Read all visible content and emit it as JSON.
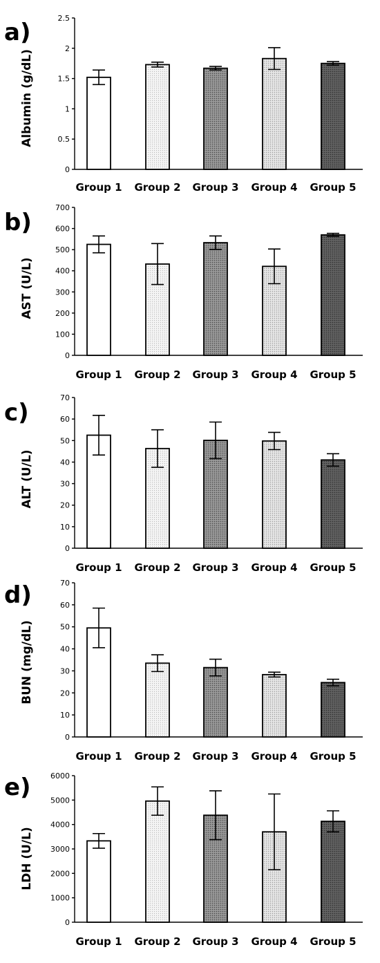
{
  "chart_data": [
    {
      "type": "bar",
      "panel_label": "a)",
      "ylabel": "Albumin (g/dL)",
      "ylim": [
        0,
        2.5
      ],
      "yticks": [
        0,
        0.5,
        1,
        1.5,
        2,
        2.5
      ],
      "ytick_labels": [
        "0",
        "0.5",
        "1",
        "1.5",
        "2",
        "2.5"
      ],
      "categories": [
        "Group 1",
        "Group 2",
        "Group 3",
        "Group 4",
        "Group 5"
      ],
      "values": [
        1.52,
        1.73,
        1.67,
        1.83,
        1.75
      ],
      "errors": [
        0.12,
        0.04,
        0.03,
        0.18,
        0.03
      ]
    },
    {
      "type": "bar",
      "panel_label": "b)",
      "ylabel": "AST (U/L)",
      "ylim": [
        0,
        700
      ],
      "yticks": [
        0,
        100,
        200,
        300,
        400,
        500,
        600,
        700
      ],
      "ytick_labels": [
        "0",
        "100",
        "200",
        "300",
        "400",
        "500",
        "600",
        "700"
      ],
      "categories": [
        "Group 1",
        "Group 2",
        "Group 3",
        "Group 4",
        "Group 5"
      ],
      "values": [
        525,
        432,
        533,
        421,
        570
      ],
      "errors": [
        40,
        97,
        32,
        82,
        7
      ]
    },
    {
      "type": "bar",
      "panel_label": "c)",
      "ylabel": "ALT (U/L)",
      "ylim": [
        0,
        70
      ],
      "yticks": [
        0,
        10,
        20,
        30,
        40,
        50,
        60,
        70
      ],
      "ytick_labels": [
        "0",
        "10",
        "20",
        "30",
        "40",
        "50",
        "60",
        "70"
      ],
      "categories": [
        "Group 1",
        "Group 2",
        "Group 3",
        "Group 4",
        "Group 5"
      ],
      "values": [
        52.5,
        46.3,
        50.1,
        49.8,
        41.0
      ],
      "errors": [
        9.2,
        8.7,
        8.5,
        4.0,
        2.9
      ]
    },
    {
      "type": "bar",
      "panel_label": "d)",
      "ylabel": "BUN (mg/dL)",
      "ylim": [
        0,
        70
      ],
      "yticks": [
        0,
        10,
        20,
        30,
        40,
        50,
        60,
        70
      ],
      "ytick_labels": [
        "0",
        "10",
        "20",
        "30",
        "40",
        "50",
        "60",
        "70"
      ],
      "categories": [
        "Group 1",
        "Group 2",
        "Group 3",
        "Group 4",
        "Group 5"
      ],
      "values": [
        49.5,
        33.5,
        31.5,
        28.3,
        24.7
      ],
      "errors": [
        9.0,
        3.8,
        3.8,
        1.1,
        1.5
      ]
    },
    {
      "type": "bar",
      "panel_label": "e)",
      "ylabel": "LDH (U/L)",
      "ylim": [
        0,
        6000
      ],
      "yticks": [
        0,
        1000,
        2000,
        3000,
        4000,
        5000,
        6000
      ],
      "ytick_labels": [
        "0",
        "1000",
        "2000",
        "3000",
        "4000",
        "5000",
        "6000"
      ],
      "categories": [
        "Group 1",
        "Group 2",
        "Group 3",
        "Group 4",
        "Group 5"
      ],
      "values": [
        3330,
        4960,
        4380,
        3700,
        4130
      ],
      "errors": [
        300,
        580,
        1000,
        1550,
        430
      ]
    }
  ],
  "style": {
    "bar_fills": [
      "#ffffff",
      "#efefef",
      "#8a8a8a",
      "#dcdcdc",
      "#565656"
    ],
    "bar_patterns": [
      "none",
      "dots",
      "dots",
      "dots",
      "dots"
    ],
    "background": "#ffffff",
    "grid": false
  }
}
